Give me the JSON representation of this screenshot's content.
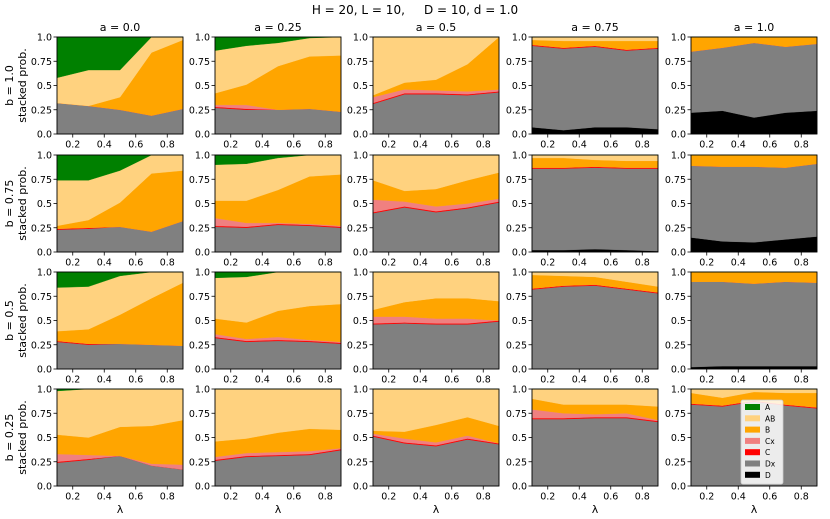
{
  "chart_data": {
    "type": "area",
    "title": "H = 20, L = 10,     D = 10, d = 1.0",
    "xlabel": "λ",
    "ylabel": "stacked prob.",
    "x": [
      0.1,
      0.3,
      0.5,
      0.7,
      0.9
    ],
    "xlim": [
      0.1,
      0.9
    ],
    "ylim": [
      0.0,
      1.0
    ],
    "xticks": [
      0.2,
      0.4,
      0.6,
      0.8
    ],
    "xtick_labels": [
      "0.2",
      "0.4",
      "0.6",
      "0.8"
    ],
    "yticks": [
      0.0,
      0.25,
      0.5,
      0.75,
      1.0
    ],
    "ytick_labels": [
      "0.0",
      "0.25",
      "0.5",
      "0.75",
      "1.0"
    ],
    "col_titles": [
      "a = 0.0",
      "a = 0.25",
      "a = 0.5",
      "a = 0.75",
      "a = 1.0"
    ],
    "row_labels": [
      "b = 1.0",
      "b = 0.75",
      "b = 0.5",
      "b = 0.25"
    ],
    "legend": {
      "location": "bottom-right panel, center",
      "entries": [
        "A",
        "AB",
        "B",
        "Cx",
        "C",
        "Dx",
        "D"
      ],
      "colors": [
        "#008000",
        "#ffd27f",
        "#ffa500",
        "#f08080",
        "#ff0000",
        "#808080",
        "#000000"
      ]
    },
    "layer_order_bottom_to_top": [
      "D",
      "Dx",
      "C",
      "Cx",
      "B",
      "AB",
      "A"
    ],
    "panels": [
      [
        {
          "D": [
            0,
            0,
            0,
            0,
            0
          ],
          "Dx": [
            0.32,
            0.29,
            0.25,
            0.19,
            0.26
          ],
          "C": [
            0,
            0,
            0,
            0,
            0
          ],
          "Cx": [
            0,
            0,
            0,
            0,
            0
          ],
          "B": [
            0,
            0,
            0.13,
            0.65,
            0.71
          ],
          "AB": [
            0.26,
            0.37,
            0.28,
            0.16,
            0.03
          ],
          "A": [
            0.42,
            0.34,
            0.34,
            0,
            0
          ]
        },
        {
          "D": [
            0,
            0,
            0,
            0,
            0
          ],
          "Dx": [
            0.27,
            0.25,
            0.25,
            0.26,
            0.23
          ],
          "C": [
            0.01,
            0.01,
            0,
            0,
            0
          ],
          "Cx": [
            0.02,
            0.04,
            0,
            0,
            0
          ],
          "B": [
            0.12,
            0.21,
            0.45,
            0.54,
            0.58
          ],
          "AB": [
            0.44,
            0.4,
            0.24,
            0.19,
            0.19
          ],
          "A": [
            0.14,
            0.09,
            0.06,
            0.01,
            0
          ]
        },
        {
          "D": [
            0,
            0,
            0,
            0,
            0
          ],
          "Dx": [
            0.31,
            0.41,
            0.41,
            0.4,
            0.43
          ],
          "C": [
            0.01,
            0.01,
            0.01,
            0.01,
            0.01
          ],
          "Cx": [
            0.06,
            0.04,
            0.03,
            0.03,
            0.02
          ],
          "B": [
            0.02,
            0.07,
            0.11,
            0.28,
            0.54
          ],
          "AB": [
            0.6,
            0.47,
            0.44,
            0.28,
            0
          ],
          "A": [
            0,
            0,
            0,
            0,
            0
          ]
        },
        {
          "D": [
            0.07,
            0.04,
            0.07,
            0.07,
            0.05
          ],
          "Dx": [
            0.84,
            0.84,
            0.83,
            0.79,
            0.83
          ],
          "C": [
            0.01,
            0.01,
            0.01,
            0.01,
            0.01
          ],
          "Cx": [
            0,
            0,
            0,
            0,
            0
          ],
          "B": [
            0.05,
            0.07,
            0.05,
            0.09,
            0.07
          ],
          "AB": [
            0.03,
            0.04,
            0.04,
            0.04,
            0.04
          ],
          "A": [
            0,
            0,
            0,
            0,
            0
          ]
        },
        {
          "D": [
            0.22,
            0.24,
            0.17,
            0.22,
            0.24
          ],
          "Dx": [
            0.63,
            0.65,
            0.77,
            0.68,
            0.69
          ],
          "C": [
            0,
            0,
            0,
            0,
            0
          ],
          "Cx": [
            0,
            0,
            0,
            0,
            0
          ],
          "B": [
            0.15,
            0.11,
            0.06,
            0.1,
            0.07
          ],
          "AB": [
            0,
            0,
            0,
            0,
            0
          ],
          "A": [
            0,
            0,
            0,
            0,
            0
          ]
        }
      ],
      [
        {
          "D": [
            0,
            0,
            0,
            0,
            0
          ],
          "Dx": [
            0.23,
            0.24,
            0.26,
            0.21,
            0.32
          ],
          "C": [
            0.01,
            0.01,
            0,
            0,
            0
          ],
          "Cx": [
            0,
            0,
            0,
            0,
            0
          ],
          "B": [
            0.03,
            0.08,
            0.25,
            0.6,
            0.52
          ],
          "AB": [
            0.47,
            0.41,
            0.33,
            0.19,
            0.16
          ],
          "A": [
            0.26,
            0.26,
            0.16,
            0,
            0
          ]
        },
        {
          "D": [
            0,
            0,
            0,
            0,
            0
          ],
          "Dx": [
            0.26,
            0.25,
            0.28,
            0.27,
            0.25
          ],
          "C": [
            0.01,
            0.01,
            0.01,
            0.01,
            0.01
          ],
          "Cx": [
            0.08,
            0.04,
            0.01,
            0.01,
            0.01
          ],
          "B": [
            0.18,
            0.23,
            0.34,
            0.49,
            0.53
          ],
          "AB": [
            0.37,
            0.38,
            0.33,
            0.22,
            0.2
          ],
          "A": [
            0.1,
            0.09,
            0.03,
            0,
            0
          ]
        },
        {
          "D": [
            0,
            0,
            0,
            0,
            0
          ],
          "Dx": [
            0.4,
            0.46,
            0.41,
            0.45,
            0.51
          ],
          "C": [
            0.01,
            0.01,
            0.01,
            0.01,
            0.01
          ],
          "Cx": [
            0.13,
            0.05,
            0.05,
            0.04,
            0.03
          ],
          "B": [
            0.2,
            0.11,
            0.18,
            0.24,
            0.27
          ],
          "AB": [
            0.26,
            0.37,
            0.35,
            0.26,
            0.18
          ],
          "A": [
            0,
            0,
            0,
            0,
            0
          ]
        },
        {
          "D": [
            0.02,
            0.02,
            0.03,
            0.02,
            0.01
          ],
          "Dx": [
            0.84,
            0.84,
            0.84,
            0.84,
            0.85
          ],
          "C": [
            0.01,
            0.01,
            0.01,
            0.01,
            0.01
          ],
          "Cx": [
            0,
            0,
            0,
            0,
            0
          ],
          "B": [
            0.1,
            0.1,
            0.07,
            0.07,
            0.07
          ],
          "AB": [
            0.03,
            0.03,
            0.05,
            0.06,
            0.06
          ],
          "A": [
            0,
            0,
            0,
            0,
            0
          ]
        },
        {
          "D": [
            0.15,
            0.11,
            0.1,
            0.13,
            0.16
          ],
          "Dx": [
            0.74,
            0.77,
            0.78,
            0.74,
            0.75
          ],
          "C": [
            0,
            0,
            0,
            0,
            0
          ],
          "Cx": [
            0,
            0,
            0,
            0,
            0
          ],
          "B": [
            0.11,
            0.12,
            0.12,
            0.13,
            0.09
          ],
          "AB": [
            0,
            0,
            0,
            0,
            0
          ],
          "A": [
            0,
            0,
            0,
            0,
            0
          ]
        }
      ],
      [
        {
          "D": [
            0,
            0,
            0,
            0,
            0
          ],
          "Dx": [
            0.28,
            0.25,
            0.26,
            0.25,
            0.24
          ],
          "C": [
            0.01,
            0.01,
            0,
            0,
            0
          ],
          "Cx": [
            0,
            0,
            0,
            0,
            0
          ],
          "B": [
            0.1,
            0.15,
            0.3,
            0.48,
            0.65
          ],
          "AB": [
            0.45,
            0.44,
            0.4,
            0.27,
            0.11
          ],
          "A": [
            0.16,
            0.15,
            0.04,
            0,
            0
          ]
        },
        {
          "D": [
            0,
            0,
            0,
            0,
            0
          ],
          "Dx": [
            0.32,
            0.28,
            0.29,
            0.28,
            0.26
          ],
          "C": [
            0.01,
            0.01,
            0.01,
            0.01,
            0.01
          ],
          "Cx": [
            0.03,
            0.02,
            0.03,
            0.01,
            0.01
          ],
          "B": [
            0.16,
            0.17,
            0.27,
            0.35,
            0.39
          ],
          "AB": [
            0.42,
            0.47,
            0.4,
            0.35,
            0.33
          ],
          "A": [
            0.06,
            0.05,
            0,
            0,
            0
          ]
        },
        {
          "D": [
            0,
            0,
            0,
            0,
            0
          ],
          "Dx": [
            0.46,
            0.47,
            0.46,
            0.46,
            0.49
          ],
          "C": [
            0.01,
            0.01,
            0.01,
            0.01,
            0.01
          ],
          "Cx": [
            0.07,
            0.06,
            0.05,
            0.05,
            0
          ],
          "B": [
            0.07,
            0.15,
            0.21,
            0.21,
            0.2
          ],
          "AB": [
            0.39,
            0.31,
            0.27,
            0.27,
            0.3
          ],
          "A": [
            0,
            0,
            0,
            0,
            0
          ]
        },
        {
          "D": [
            0,
            0,
            0,
            0,
            0
          ],
          "Dx": [
            0.82,
            0.85,
            0.86,
            0.82,
            0.78
          ],
          "C": [
            0.01,
            0.01,
            0.01,
            0.01,
            0.01
          ],
          "Cx": [
            0,
            0,
            0,
            0,
            0
          ],
          "B": [
            0.14,
            0.1,
            0.08,
            0.07,
            0.06
          ],
          "AB": [
            0.03,
            0.04,
            0.05,
            0.1,
            0.15
          ],
          "A": [
            0,
            0,
            0,
            0,
            0
          ]
        },
        {
          "D": [
            0.02,
            0.03,
            0.03,
            0.03,
            0.03
          ],
          "Dx": [
            0.88,
            0.87,
            0.85,
            0.87,
            0.86
          ],
          "C": [
            0,
            0,
            0,
            0,
            0
          ],
          "Cx": [
            0,
            0,
            0,
            0,
            0
          ],
          "B": [
            0.1,
            0.1,
            0.12,
            0.1,
            0.11
          ],
          "AB": [
            0,
            0,
            0,
            0,
            0
          ],
          "A": [
            0,
            0,
            0,
            0,
            0
          ]
        }
      ],
      [
        {
          "D": [
            0,
            0,
            0,
            0,
            0
          ],
          "Dx": [
            0.24,
            0.27,
            0.31,
            0.21,
            0.17
          ],
          "C": [
            0.01,
            0.01,
            0,
            0,
            0
          ],
          "Cx": [
            0.08,
            0.04,
            0,
            0.02,
            0.05
          ],
          "B": [
            0.2,
            0.18,
            0.3,
            0.39,
            0.46
          ],
          "AB": [
            0.45,
            0.5,
            0.39,
            0.38,
            0.32
          ],
          "A": [
            0.02,
            0,
            0,
            0,
            0
          ]
        },
        {
          "D": [
            0,
            0,
            0,
            0,
            0
          ],
          "Dx": [
            0.26,
            0.3,
            0.31,
            0.32,
            0.37
          ],
          "C": [
            0.01,
            0.01,
            0.01,
            0.01,
            0.01
          ],
          "Cx": [
            0.03,
            0.03,
            0.03,
            0.03,
            0.01
          ],
          "B": [
            0.16,
            0.15,
            0.2,
            0.23,
            0.19
          ],
          "AB": [
            0.54,
            0.51,
            0.45,
            0.41,
            0.42
          ],
          "A": [
            0,
            0,
            0,
            0,
            0
          ]
        },
        {
          "D": [
            0,
            0,
            0,
            0,
            0
          ],
          "Dx": [
            0.51,
            0.44,
            0.41,
            0.48,
            0.43
          ],
          "C": [
            0.01,
            0.01,
            0.01,
            0.01,
            0.01
          ],
          "Cx": [
            0.02,
            0.04,
            0.03,
            0.03,
            0
          ],
          "B": [
            0.03,
            0.07,
            0.18,
            0.19,
            0.18
          ],
          "AB": [
            0.43,
            0.44,
            0.37,
            0.29,
            0.38
          ],
          "A": [
            0,
            0,
            0,
            0,
            0
          ]
        },
        {
          "D": [
            0,
            0,
            0,
            0,
            0
          ],
          "Dx": [
            0.69,
            0.69,
            0.7,
            0.7,
            0.66
          ],
          "C": [
            0.01,
            0.01,
            0.01,
            0.01,
            0.01
          ],
          "Cx": [
            0.09,
            0.05,
            0.03,
            0.04,
            0.01
          ],
          "B": [
            0.11,
            0.09,
            0.1,
            0.09,
            0.14
          ],
          "AB": [
            0.1,
            0.16,
            0.16,
            0.16,
            0.18
          ],
          "A": [
            0,
            0,
            0,
            0,
            0
          ]
        },
        {
          "D": [
            0,
            0,
            0,
            0,
            0
          ],
          "Dx": [
            0.84,
            0.82,
            0.87,
            0.83,
            0.8
          ],
          "C": [
            0.01,
            0.01,
            0.01,
            0.01,
            0.01
          ],
          "Cx": [
            0,
            0,
            0,
            0,
            0
          ],
          "B": [
            0.11,
            0.08,
            0.09,
            0.12,
            0.15
          ],
          "AB": [
            0.04,
            0.09,
            0.03,
            0.04,
            0.04
          ],
          "A": [
            0,
            0,
            0,
            0,
            0
          ]
        }
      ]
    ]
  }
}
